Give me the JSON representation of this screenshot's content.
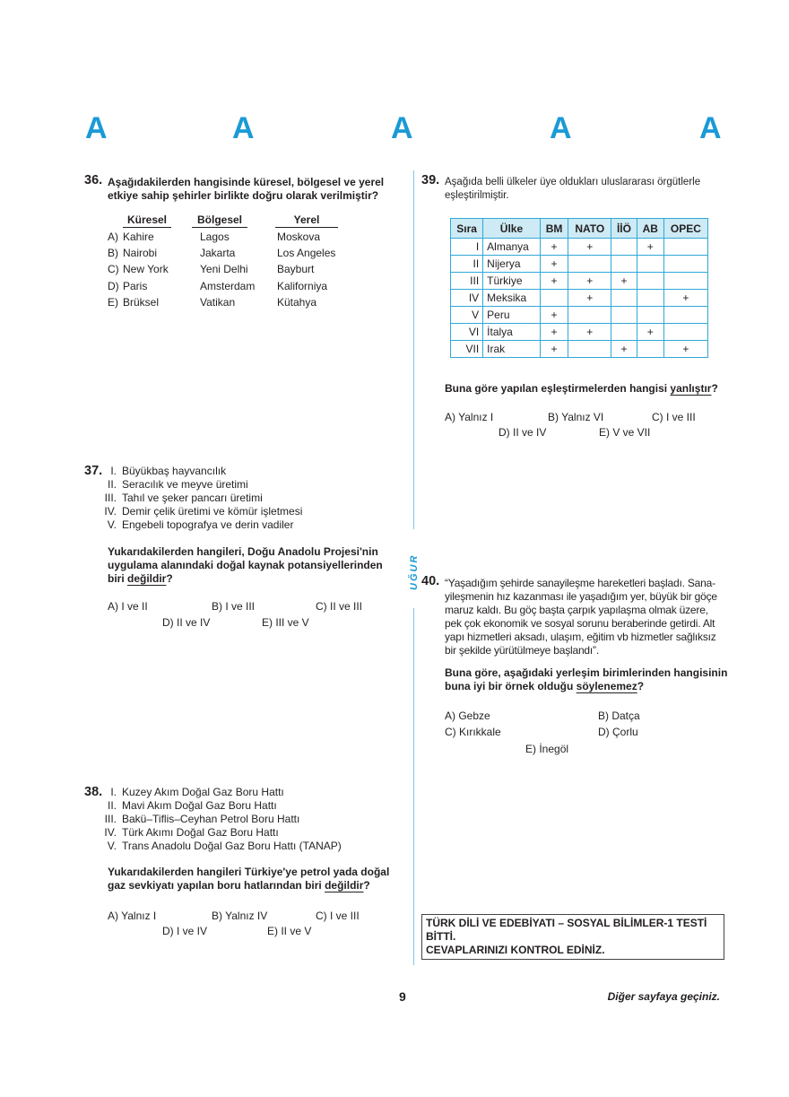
{
  "header": {
    "letters": [
      "A",
      "A",
      "A",
      "A",
      "A"
    ]
  },
  "side_label": "UĞUR",
  "q36": {
    "number": "36.",
    "question": [
      "Aşağıdakilerden hangisinde küresel, bölgesel ve yerel",
      "etkiye sahip şehirler birlikte doğru olarak verilmiştir?"
    ],
    "columns": [
      "Küresel",
      "Bölgesel",
      "Yerel"
    ],
    "options": [
      {
        "letter": "A)",
        "values": [
          "Kahire",
          "Lagos",
          "Moskova"
        ]
      },
      {
        "letter": "B)",
        "values": [
          "Nairobi",
          "Jakarta",
          "Los Angeles"
        ]
      },
      {
        "letter": "C)",
        "values": [
          "New York",
          "Yeni Delhi",
          "Bayburt"
        ]
      },
      {
        "letter": "D)",
        "values": [
          "Paris",
          "Amsterdam",
          "Kaliforniya"
        ]
      },
      {
        "letter": "E)",
        "values": [
          "Brüksel",
          "Vatikan",
          "Kütahya"
        ]
      }
    ]
  },
  "q37": {
    "number": "37.",
    "items": [
      {
        "n": "I.",
        "t": "Büyükbaş hayvancılık"
      },
      {
        "n": "II.",
        "t": "Seracılık ve meyve üretimi"
      },
      {
        "n": "III.",
        "t": "Tahıl ve şeker pancarı üretimi"
      },
      {
        "n": "IV.",
        "t": "Demir çelik üretimi ve kömür işletmesi"
      },
      {
        "n": "V.",
        "t": "Engebeli topografya ve derin vadiler"
      }
    ],
    "question": [
      "Yukarıdakilerden hangileri, Doğu Anadolu Projesi'nin",
      "uygulama alanındaki doğal kaynak potansiyellerinden",
      "biri "
    ],
    "emph": "değildir",
    "end": "?",
    "options": [
      "A) I ve II",
      "B) I ve III",
      "C) II ve III",
      "D) II ve IV",
      "E) III ve V"
    ]
  },
  "q38": {
    "number": "38.",
    "items": [
      {
        "n": "I.",
        "t": "Kuzey Akım Doğal Gaz Boru Hattı"
      },
      {
        "n": "II.",
        "t": "Mavi Akım Doğal Gaz Boru Hattı"
      },
      {
        "n": "III.",
        "t": "Bakü–Tiflis–Ceyhan Petrol Boru Hattı"
      },
      {
        "n": "IV.",
        "t": "Türk Akımı Doğal Gaz Boru Hattı"
      },
      {
        "n": "V.",
        "t": "Trans Anadolu Doğal Gaz Boru Hattı (TANAP)"
      }
    ],
    "question": [
      "Yukarıdakilerden hangileri Türkiye'ye petrol yada doğal",
      "gaz sevkiyatı yapılan boru hatlarından biri "
    ],
    "emph": "değildir",
    "end": "?",
    "options": [
      "A) Yalnız I",
      "B) Yalnız IV",
      "C) I ve III",
      "D) I ve IV",
      "E) II ve V"
    ]
  },
  "q39": {
    "number": "39.",
    "intro": [
      "Aşağıda belli ülkeler üye oldukları uluslararası örgütlerle",
      "eşleştirilmiştir."
    ],
    "table": {
      "headers": [
        "Sıra",
        "Ülke",
        "BM",
        "NATO",
        "İİÖ",
        "AB",
        "OPEC"
      ],
      "rows": [
        [
          "I",
          "Almanya",
          "+",
          "+",
          "",
          "+",
          ""
        ],
        [
          "II",
          "Nijerya",
          "+",
          "",
          "",
          "",
          ""
        ],
        [
          "III",
          "Türkiye",
          "+",
          "+",
          "+",
          "",
          ""
        ],
        [
          "IV",
          "Meksika",
          "",
          "+",
          "",
          "",
          "+"
        ],
        [
          "V",
          "Peru",
          "+",
          "",
          "",
          "",
          ""
        ],
        [
          "VI",
          "İtalya",
          "+",
          "+",
          "",
          "+",
          ""
        ],
        [
          "VII",
          "Irak",
          "+",
          "",
          "+",
          "",
          "+"
        ]
      ]
    },
    "question": "Buna göre yapılan eşleştirmelerden hangisi ",
    "emph": "yanlıştır",
    "end": "?",
    "options": [
      "A) Yalnız I",
      "B) Yalnız VI",
      "C) I  ve III",
      "D) II ve IV",
      "E) V ve VII"
    ]
  },
  "q40": {
    "number": "40.",
    "passage": [
      "“Yaşadığım şehirde sanayileşme hareketleri başladı. Sana-",
      "yileşmenin hız kazanması ile yaşadığım yer, büyük bir göçe",
      "maruz kaldı. Bu göç başta çarpık yapılaşma olmak üzere,",
      "pek çok ekonomik ve sosyal sorunu beraberinde getirdi. Alt",
      "yapı hizmetleri aksadı, ulaşım, eğitim vb hizmetler sağlıksız",
      "bir şekilde yürütülmeye başlandı”."
    ],
    "question": [
      "Buna göre, aşağıdaki yerleşim birimlerinden hangisinin",
      "buna iyi bir örnek olduğu "
    ],
    "emph": "söylenemez",
    "end": "?",
    "options": [
      "A) Gebze",
      "B) Datça",
      "C) Kırıkkale",
      "D) Çorlu",
      "E) İnegöl"
    ]
  },
  "end_box": [
    "TÜRK DİLİ VE EDEBİYATI – SOSYAL BİLİMLER-1 TESTİ",
    "BİTTİ.",
    "CEVAPLARINIZI KONTROL EDİNİZ."
  ],
  "footer": {
    "page_number": "9",
    "next": "Diğer sayfaya geçiniz."
  },
  "colors": {
    "accent": "#1a9ad6",
    "table_border": "#2fa8d8",
    "table_header": "#cdeaf5"
  }
}
